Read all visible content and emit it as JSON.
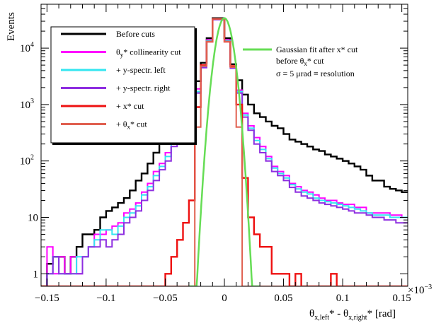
{
  "chart_data": {
    "type": "line",
    "style": "step-histogram",
    "xlabel": {
      "main": "θ",
      "sub1": "x,left",
      "mid": "* - θ",
      "sub2": "x,right",
      "tail": "* [rad]"
    },
    "ylabel": "Events",
    "x_multiplier": "×10",
    "x_multiplier_exp": "−3",
    "xlim": [
      -0.155,
      0.155
    ],
    "ylim_log": [
      0.6,
      60000
    ],
    "yscale": "log",
    "x_ticks": [
      {
        "value": -0.15,
        "label": "−0.15"
      },
      {
        "value": -0.1,
        "label": "−0.1"
      },
      {
        "value": -0.05,
        "label": "−0.05"
      },
      {
        "value": 0,
        "label": "0"
      },
      {
        "value": 0.05,
        "label": "0.05"
      },
      {
        "value": 0.1,
        "label": "0.1"
      },
      {
        "value": 0.15,
        "label": "0.15"
      }
    ],
    "y_ticks": [
      {
        "value": 1,
        "base": "1",
        "exp": ""
      },
      {
        "value": 10,
        "base": "10",
        "exp": ""
      },
      {
        "value": 100,
        "base": "10",
        "exp": "2"
      },
      {
        "value": 1000,
        "base": "10",
        "exp": "3"
      },
      {
        "value": 10000,
        "base": "10",
        "exp": "4"
      }
    ],
    "bin_width": 0.005,
    "x_start": -0.155,
    "series": [
      {
        "name": "Before cuts",
        "color": "#000000",
        "width": 2.4,
        "values": [
          0.6,
          1.5,
          2,
          2,
          1,
          2,
          3,
          5,
          5,
          6,
          10,
          13,
          15,
          18,
          22,
          30,
          45,
          60,
          90,
          140,
          200,
          320,
          460,
          600,
          800,
          1200,
          2600,
          5500,
          15000,
          34000,
          34000,
          15000,
          5200,
          2700,
          1500,
          1000,
          700,
          600,
          500,
          420,
          380,
          300,
          240,
          220,
          200,
          180,
          160,
          150,
          130,
          120,
          110,
          100,
          90,
          80,
          70,
          55,
          45,
          45,
          35,
          32,
          30,
          28
        ]
      },
      {
        "name": "θy* collinearity cut",
        "color": "#ff00ff",
        "width": 2.0,
        "values": [
          0.6,
          3,
          1,
          2,
          1,
          2,
          1,
          2,
          3,
          5,
          5,
          6,
          7,
          8,
          12,
          14,
          18,
          28,
          40,
          65,
          90,
          140,
          220,
          340,
          500,
          800,
          1900,
          5000,
          14000,
          33000,
          33000,
          14000,
          4800,
          1800,
          700,
          420,
          260,
          180,
          120,
          80,
          65,
          55,
          40,
          35,
          30,
          28,
          25,
          22,
          20,
          20,
          18,
          17,
          17,
          15,
          15,
          12,
          12,
          12,
          12,
          11,
          11,
          10
        ]
      },
      {
        "name": "+ y-spectr. left",
        "color": "#33e6f0",
        "width": 2.0,
        "values": [
          0.6,
          1,
          2,
          1,
          1,
          1,
          2,
          2,
          3,
          4,
          6,
          6,
          5,
          7,
          10,
          12,
          16,
          25,
          35,
          55,
          80,
          120,
          200,
          300,
          450,
          700,
          1700,
          4700,
          13500,
          32500,
          32500,
          13500,
          4600,
          1700,
          650,
          380,
          230,
          160,
          110,
          75,
          60,
          50,
          38,
          32,
          28,
          26,
          22,
          20,
          19,
          18,
          17,
          16,
          15,
          14,
          13,
          12,
          11,
          11,
          11,
          10,
          10,
          10
        ]
      },
      {
        "name": "+ y-spectr. right",
        "color": "#8e2ee0",
        "width": 2.0,
        "values": [
          0.6,
          1,
          2,
          1,
          1,
          1,
          1,
          2,
          3,
          3,
          4,
          3,
          4,
          5,
          8,
          10,
          13,
          20,
          30,
          45,
          70,
          100,
          180,
          260,
          400,
          650,
          1600,
          4500,
          13000,
          32000,
          32000,
          13000,
          4400,
          1600,
          600,
          350,
          200,
          140,
          100,
          65,
          55,
          45,
          34,
          28,
          24,
          22,
          20,
          18,
          17,
          16,
          15,
          14,
          13,
          12,
          12,
          11,
          10,
          10,
          9,
          9,
          8,
          8
        ]
      },
      {
        "name": "+ x* cut",
        "color": "#ee1111",
        "width": 2.4,
        "values": [
          0.3,
          0.3,
          0.3,
          0.3,
          0.3,
          0.3,
          0.3,
          0.3,
          0.3,
          0.3,
          0.3,
          0.3,
          0.3,
          0.3,
          0.3,
          0.3,
          0.3,
          0.3,
          0.3,
          0.3,
          0.3,
          1,
          2,
          4,
          8,
          20,
          900,
          5000,
          13000,
          33000,
          33000,
          13000,
          4800,
          1000,
          50,
          10,
          5,
          3,
          3,
          1,
          1,
          1,
          0.3,
          1,
          0.3,
          0.3,
          0.3,
          0.3,
          0.3,
          1,
          0.3,
          0.3,
          0.3,
          0.3,
          0.3,
          0.3,
          0.3,
          0.3,
          0.3,
          0.3,
          0.3,
          0.3
        ]
      },
      {
        "name": "+ θx* cut",
        "color": "#e06050",
        "width": 2.0,
        "values": [
          0.3,
          0.3,
          0.3,
          0.3,
          0.3,
          0.3,
          0.3,
          0.3,
          0.3,
          0.3,
          0.3,
          0.3,
          0.3,
          0.3,
          0.3,
          0.3,
          0.3,
          0.3,
          0.3,
          0.3,
          0.3,
          0.3,
          0.3,
          0.3,
          0.3,
          0.3,
          400,
          4800,
          13000,
          33000,
          33000,
          13000,
          4600,
          400,
          0.3,
          0.3,
          0.3,
          0.3,
          0.3,
          0.3,
          0.3,
          0.3,
          0.3,
          0.3,
          0.3,
          0.3,
          0.3,
          0.3,
          0.3,
          0.3,
          0.3,
          0.3,
          0.3,
          0.3,
          0.3,
          0.3,
          0.3,
          0.3,
          0.3,
          0.3,
          0.3,
          0.3
        ]
      }
    ],
    "fit": {
      "name": "Gaussian fit after x* cut before θx* cut",
      "color": "#66dd55",
      "amplitude": 34000,
      "mean": 0,
      "sigma": 0.005,
      "range": [
        -0.03,
        0.03
      ]
    },
    "legend": {
      "entries": [
        {
          "text": "Before cuts",
          "color": "#000000"
        },
        {
          "text_main": "θ",
          "sub": "y",
          "text_tail": "* collinearity cut",
          "color": "#ff00ff"
        },
        {
          "text": "+ y-spectr. left",
          "color": "#33e6f0"
        },
        {
          "text": "+ y-spectr. right",
          "color": "#8e2ee0"
        },
        {
          "text": "+ x* cut",
          "color": "#ee1111"
        },
        {
          "text_main": "+ θ",
          "sub": "x",
          "text_tail": "* cut",
          "color": "#e06050"
        }
      ],
      "placement": "top-left"
    },
    "annotation": {
      "line1": "Gaussian fit after x* cut",
      "line2_main": "before θ",
      "line2_sub": "x",
      "line2_tail": "* cut",
      "line3": "σ = 5 μrad ≡ resolution",
      "color": "#66dd55"
    }
  }
}
